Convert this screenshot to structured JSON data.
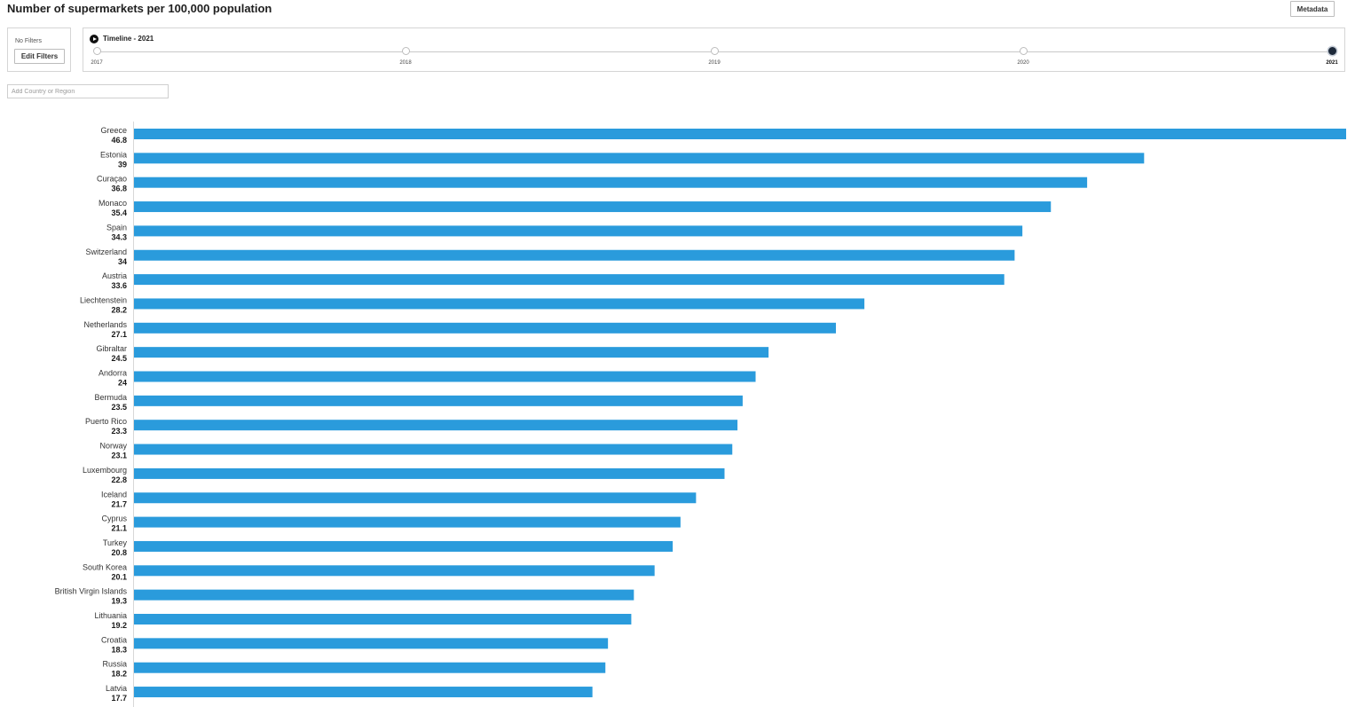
{
  "page": {
    "title": "Number of supermarkets per 100,000 population",
    "metadata_label": "Metadata"
  },
  "filters": {
    "status": "No Filters",
    "edit_label": "Edit Filters"
  },
  "timeline": {
    "title": "Timeline - 2021",
    "years": [
      "2017",
      "2018",
      "2019",
      "2020",
      "2021"
    ],
    "selected": "2021"
  },
  "search": {
    "placeholder": "Add Country or Region"
  },
  "colors": {
    "bar": "#2a9bdc",
    "active_node": "#1e2a3a"
  },
  "chart_data": {
    "type": "bar",
    "orientation": "horizontal",
    "categories": [
      "Greece",
      "Estonia",
      "Curaçao",
      "Monaco",
      "Spain",
      "Switzerland",
      "Austria",
      "Liechtenstein",
      "Netherlands",
      "Gibraltar",
      "Andorra",
      "Bermuda",
      "Puerto Rico",
      "Norway",
      "Luxembourg",
      "Iceland",
      "Cyprus",
      "Turkey",
      "South Korea",
      "British Virgin Islands",
      "Lithuania",
      "Croatia",
      "Russia",
      "Latvia"
    ],
    "values": [
      46.8,
      39,
      36.8,
      35.4,
      34.3,
      34,
      33.6,
      28.2,
      27.1,
      24.5,
      24,
      23.5,
      23.3,
      23.1,
      22.8,
      21.7,
      21.1,
      20.8,
      20.1,
      19.3,
      19.2,
      18.3,
      18.2,
      17.7
    ],
    "value_labels": [
      "46.8",
      "39",
      "36.8",
      "35.4",
      "34.3",
      "34",
      "33.6",
      "28.2",
      "27.1",
      "24.5",
      "24",
      "23.5",
      "23.3",
      "23.1",
      "22.8",
      "21.7",
      "21.1",
      "20.8",
      "20.1",
      "19.3",
      "19.2",
      "18.3",
      "18.2",
      "17.7"
    ],
    "title": "Number of supermarkets per 100,000 population",
    "xlabel": "",
    "ylabel": "",
    "xlim": [
      0,
      46.8
    ],
    "grid": false,
    "legend": "none"
  }
}
